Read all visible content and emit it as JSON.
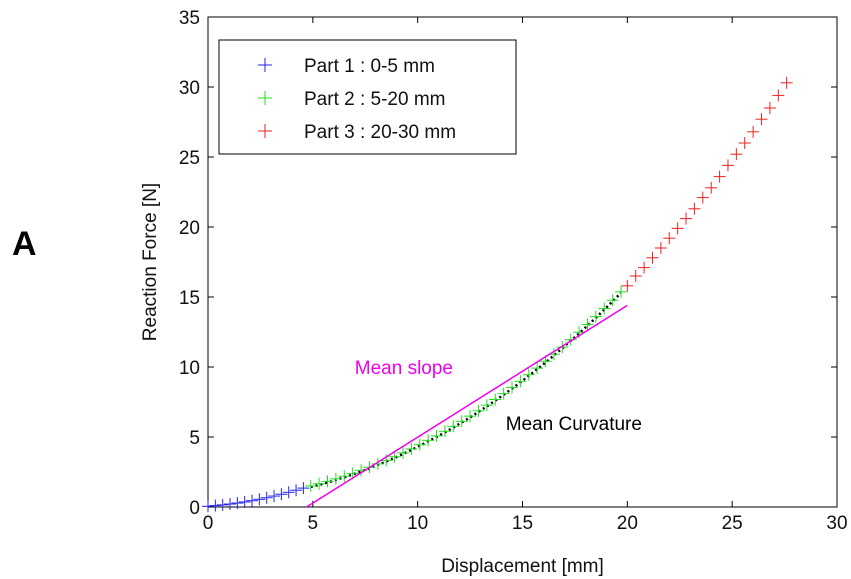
{
  "panel_letter": "A",
  "chart_data": {
    "type": "scatter",
    "title": "",
    "xlabel": "Displacement [mm]",
    "ylabel": "Reaction Force [N]",
    "xlim": [
      0,
      30
    ],
    "ylim": [
      0,
      35
    ],
    "xticks": [
      0,
      5,
      10,
      15,
      20,
      25,
      30
    ],
    "yticks": [
      0,
      5,
      10,
      15,
      20,
      25,
      30,
      35
    ],
    "grid": false,
    "legend_position": "top-left",
    "series": [
      {
        "name": "Part 1 : 0-5 mm",
        "color": "#2222ee",
        "marker": "plus",
        "x": [
          0,
          0.35,
          0.7,
          1.05,
          1.4,
          1.75,
          2.1,
          2.45,
          2.8,
          3.15,
          3.5,
          3.85,
          4.2,
          4.55
        ],
        "y": [
          0.05,
          0.1,
          0.15,
          0.21,
          0.28,
          0.36,
          0.45,
          0.55,
          0.66,
          0.78,
          0.91,
          1.05,
          1.2,
          1.35
        ]
      },
      {
        "name": "Part 2 : 5-20 mm",
        "color": "#22dd22",
        "marker": "plus",
        "x": [
          4.9,
          5.3,
          5.7,
          6.1,
          6.5,
          6.9,
          7.3,
          7.7,
          8.1,
          8.5,
          8.9,
          9.3,
          9.7,
          10.1,
          10.5,
          10.9,
          11.3,
          11.7,
          12.1,
          12.5,
          12.9,
          13.3,
          13.7,
          14.1,
          14.5,
          14.9,
          15.3,
          15.7,
          16.1,
          16.5,
          16.9,
          17.3,
          17.7,
          18.1,
          18.5,
          18.9,
          19.3,
          19.7
        ],
        "y": [
          1.5,
          1.66,
          1.83,
          2.01,
          2.2,
          2.4,
          2.62,
          2.84,
          3.08,
          3.33,
          3.59,
          3.87,
          4.15,
          4.45,
          4.76,
          5.08,
          5.41,
          5.76,
          6.12,
          6.49,
          6.87,
          7.27,
          7.68,
          8.1,
          8.54,
          8.98,
          9.45,
          9.92,
          10.41,
          10.91,
          11.42,
          11.95,
          12.48,
          13.04,
          13.6,
          14.18,
          14.77,
          15.37
        ]
      },
      {
        "name": "Part 3 : 20-30 mm",
        "color": "#ee2222",
        "marker": "plus",
        "x": [
          20,
          20.4,
          20.8,
          21.2,
          21.6,
          22,
          22.4,
          22.8,
          23.2,
          23.6,
          24,
          24.4,
          24.8,
          25.2,
          25.6,
          26,
          26.4,
          26.8,
          27.2,
          27.6
        ],
        "y": [
          15.8,
          16.5,
          17.1,
          17.8,
          18.5,
          19.2,
          19.9,
          20.6,
          21.3,
          22.1,
          22.8,
          23.6,
          24.4,
          25.2,
          26,
          26.8,
          27.7,
          28.5,
          29.4,
          30.3
        ]
      }
    ],
    "annotations": [
      {
        "label": "Mean slope",
        "color": "#ee00ee",
        "line": {
          "x": [
            4.7,
            20
          ],
          "y": [
            0,
            14.4
          ]
        },
        "text_x": 7,
        "text_y": 9.5
      },
      {
        "label": "Mean Curvature",
        "color": "#000000",
        "text_x": 14.2,
        "text_y": 5.5
      }
    ]
  }
}
